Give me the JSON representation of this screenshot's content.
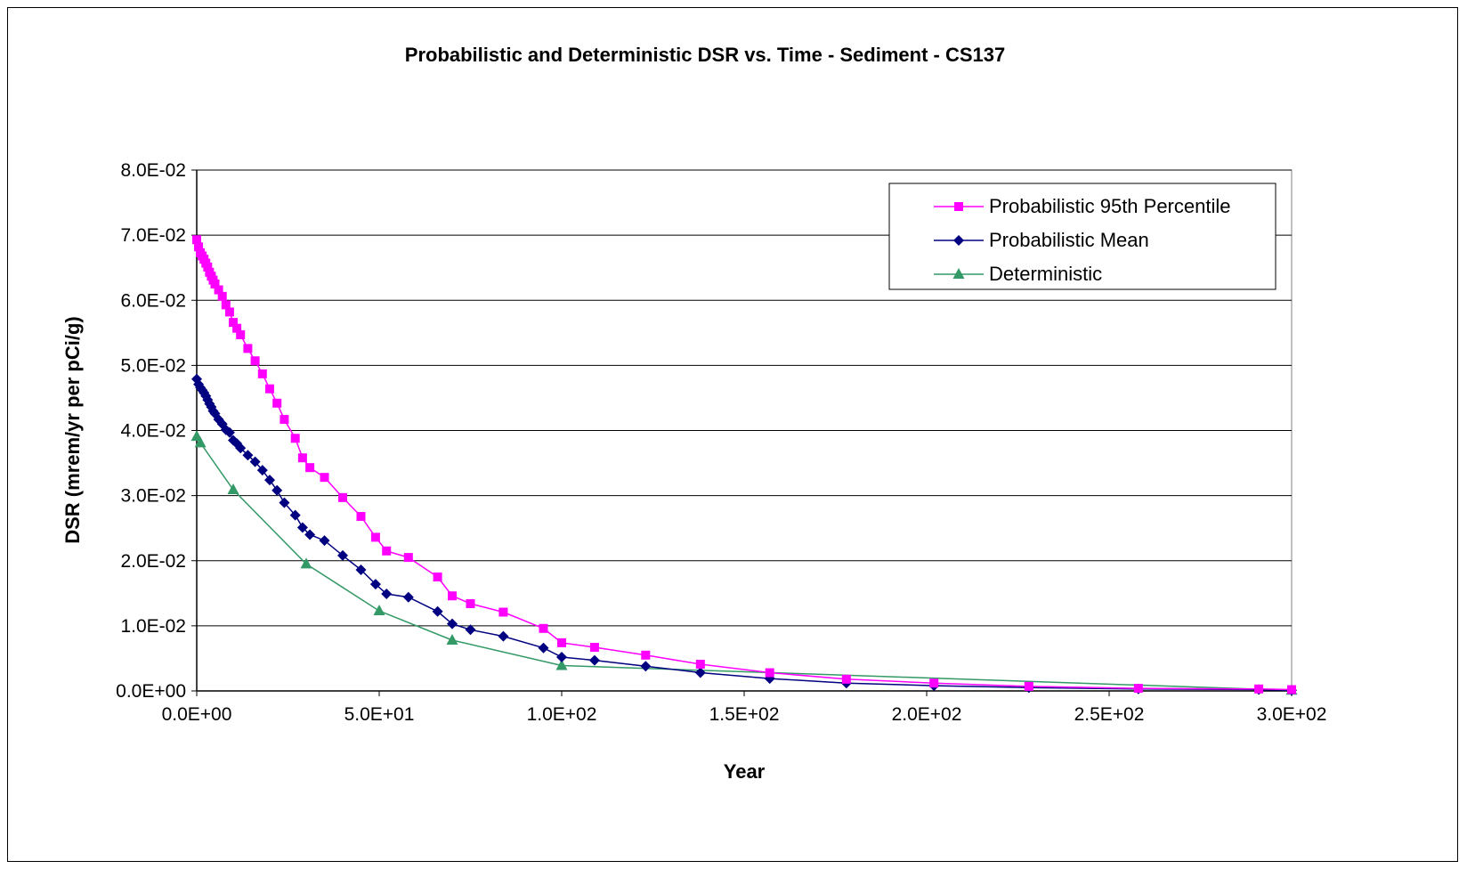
{
  "chart_data": {
    "type": "line",
    "title": "Probabilistic and Deterministic DSR vs. Time - Sediment - CS137",
    "xlabel": "Year",
    "ylabel": "DSR (mrem/yr per pCi/g)",
    "xlim": [
      0,
      300
    ],
    "ylim": [
      0,
      0.08
    ],
    "xticks": [
      0,
      50,
      100,
      150,
      200,
      250,
      300
    ],
    "yticks": [
      0,
      0.01,
      0.02,
      0.03,
      0.04,
      0.05,
      0.06,
      0.07,
      0.08
    ],
    "xtick_labels": [
      "0.0E+00",
      "5.0E+01",
      "1.0E+02",
      "1.5E+02",
      "2.0E+02",
      "2.5E+02",
      "3.0E+02"
    ],
    "ytick_labels": [
      "0.0E+00",
      "1.0E-02",
      "2.0E-02",
      "3.0E-02",
      "4.0E-02",
      "5.0E-02",
      "6.0E-02",
      "7.0E-02",
      "8.0E-02"
    ],
    "grid": "horizontal",
    "legend_position": "top-right",
    "series": [
      {
        "name": "Probabilistic 95th Percentile",
        "color": "#ff00ff",
        "marker": "square",
        "x": [
          0,
          0.5,
          1,
          1.5,
          2,
          2.5,
          3,
          3.5,
          4,
          4.5,
          5,
          6,
          7,
          8,
          9,
          10,
          11,
          12,
          14,
          16,
          18,
          20,
          22,
          24,
          27,
          29,
          31,
          35,
          40,
          45,
          49,
          52,
          58,
          66,
          70,
          75,
          84,
          95,
          100,
          109,
          123,
          138,
          157,
          178,
          202,
          228,
          258,
          291,
          300
        ],
        "y": [
          0.0693,
          0.0682,
          0.0673,
          0.0668,
          0.0663,
          0.0657,
          0.0651,
          0.0643,
          0.0637,
          0.0631,
          0.0625,
          0.0616,
          0.0606,
          0.0593,
          0.0582,
          0.0566,
          0.0557,
          0.0547,
          0.0526,
          0.0507,
          0.0487,
          0.0464,
          0.0442,
          0.0417,
          0.0388,
          0.0358,
          0.0343,
          0.0328,
          0.0297,
          0.0268,
          0.0236,
          0.0215,
          0.0205,
          0.0175,
          0.0146,
          0.0134,
          0.0121,
          0.0096,
          0.0074,
          0.0067,
          0.0055,
          0.0041,
          0.0028,
          0.0018,
          0.0012,
          0.0007,
          0.0004,
          0.0003,
          0.0002
        ]
      },
      {
        "name": "Probabilistic Mean",
        "color": "#000080",
        "marker": "diamond",
        "x": [
          0,
          0.5,
          1,
          1.5,
          2,
          2.5,
          3,
          3.5,
          4,
          4.5,
          5,
          6,
          7,
          8,
          9,
          10,
          11,
          12,
          14,
          16,
          18,
          20,
          22,
          24,
          27,
          29,
          31,
          35,
          40,
          45,
          49,
          52,
          58,
          66,
          70,
          75,
          84,
          95,
          100,
          109,
          123,
          138,
          157,
          178,
          202,
          228,
          258,
          291,
          300
        ],
        "y": [
          0.0479,
          0.0471,
          0.0466,
          0.0462,
          0.0458,
          0.0453,
          0.0447,
          0.0441,
          0.0436,
          0.043,
          0.0426,
          0.0417,
          0.041,
          0.0401,
          0.0397,
          0.0385,
          0.038,
          0.0373,
          0.0362,
          0.0352,
          0.0339,
          0.0324,
          0.0308,
          0.0289,
          0.027,
          0.0251,
          0.024,
          0.0231,
          0.0208,
          0.0186,
          0.0164,
          0.0149,
          0.0144,
          0.0122,
          0.0103,
          0.0094,
          0.0084,
          0.0066,
          0.0052,
          0.0047,
          0.0038,
          0.0028,
          0.0019,
          0.0012,
          0.0008,
          0.0005,
          0.0003,
          0.0002,
          0.0001
        ]
      },
      {
        "name": "Deterministic",
        "color": "#339966",
        "marker": "triangle",
        "x": [
          0,
          1,
          10,
          30,
          50,
          70,
          100,
          300
        ],
        "y": [
          0.0391,
          0.0381,
          0.0309,
          0.0195,
          0.0123,
          0.0078,
          0.0039,
          0.0001
        ]
      }
    ]
  }
}
